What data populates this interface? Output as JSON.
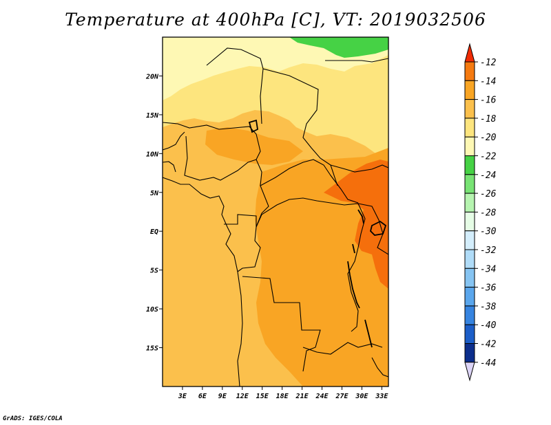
{
  "title": "Temperature at 400hPa [C], VT: 2019032506",
  "footer": "GrADS: IGES/COLA",
  "map": {
    "lon_range": [
      0,
      34
    ],
    "lat_range": [
      -20,
      25
    ],
    "lon_ticks": [
      3,
      6,
      9,
      12,
      15,
      18,
      21,
      24,
      27,
      30,
      33
    ],
    "lon_tick_labels": [
      "3E",
      "6E",
      "9E",
      "12E",
      "15E",
      "18E",
      "21E",
      "24E",
      "27E",
      "30E",
      "33E"
    ],
    "lat_ticks": [
      20,
      15,
      10,
      5,
      0,
      -5,
      -10,
      -15
    ],
    "lat_tick_labels": [
      "20N",
      "15N",
      "10N",
      "5N",
      "EQ",
      "5S",
      "10S",
      "15S"
    ],
    "fill_colors": {
      "minus_22_to_minus_20": "#fef8b4",
      "minus_20_to_minus_18": "#fde57e",
      "minus_18_to_minus_16": "#fbc04c",
      "minus_16_to_minus_14": "#f9a524",
      "minus_14_to_minus_12": "#f56f0c",
      "minus_24_to_minus_22": "#46d245"
    }
  },
  "colorbar": {
    "labels": [
      "-12",
      "-14",
      "-16",
      "-18",
      "-20",
      "-22",
      "-24",
      "-26",
      "-28",
      "-30",
      "-32",
      "-34",
      "-36",
      "-38",
      "-40",
      "-42",
      "-44"
    ],
    "colors": [
      "#f44a07",
      "#f57a10",
      "#f9a524",
      "#fbc04c",
      "#fde57e",
      "#fef8b4",
      "#46d245",
      "#78e374",
      "#b6f4b0",
      "#e6fde6",
      "#d4eefc",
      "#b0dcf8",
      "#86c4f2",
      "#5aa6ec",
      "#3684e0",
      "#1c5ec8",
      "#0c2e8c",
      "#08106a"
    ],
    "top_arrow_color": "#f02c05",
    "bottom_arrow_color": "#dcd4f6"
  }
}
